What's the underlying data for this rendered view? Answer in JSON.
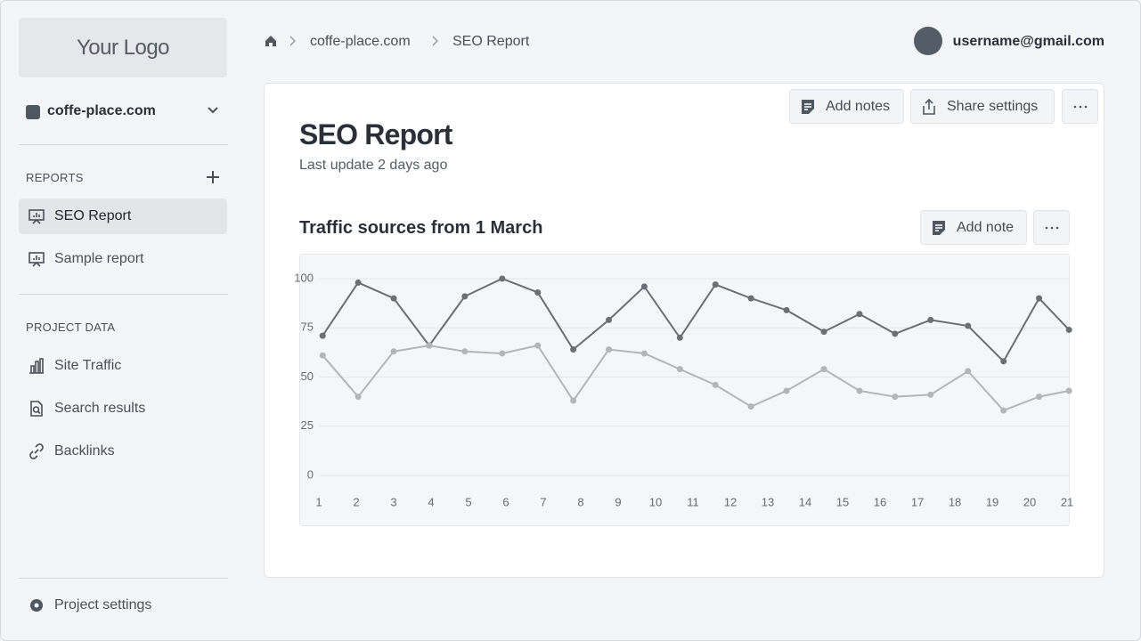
{
  "sidebar": {
    "logo": "Your Logo",
    "project": "coffe-place.com",
    "reports": {
      "label": "REPORTS",
      "items": [
        "SEO Report",
        "Sample report"
      ]
    },
    "project_data": {
      "label": "PROJECT DATA",
      "items": [
        "Site Traffic",
        "Search results",
        "Backlinks"
      ]
    },
    "footer": "Project settings"
  },
  "header": {
    "breadcrumb": [
      "coffe-place.com",
      "SEO Report"
    ],
    "user": "username@gmail.com"
  },
  "report": {
    "title": "SEO Report",
    "subtitle": "Last update 2 days ago",
    "buttons": [
      "Add notes",
      "Share settings"
    ],
    "chart_button": "Add note"
  },
  "chart_data": {
    "type": "line",
    "title": "Traffic sources from 1 March",
    "x": [
      1.1,
      2.05,
      3.0,
      3.95,
      4.9,
      5.9,
      6.85,
      7.8,
      8.75,
      9.7,
      10.65,
      11.6,
      12.55,
      13.5,
      14.5,
      15.45,
      16.4,
      17.35,
      18.35,
      19.3,
      20.25,
      21.05
    ],
    "series": [
      {
        "color": "#6b6e72",
        "values": [
          71,
          98,
          90,
          66,
          91,
          100,
          93,
          64,
          79,
          96,
          70,
          97,
          90,
          84,
          73,
          82,
          72,
          79,
          76,
          58,
          90,
          74
        ]
      },
      {
        "color": "#b3b5b8",
        "values": [
          61,
          40,
          63,
          66,
          63,
          62,
          66,
          38,
          64,
          62,
          54,
          46,
          35,
          43,
          54,
          43,
          40,
          41,
          53,
          33,
          40,
          43
        ]
      }
    ],
    "xlim": [
      0.5,
      21.07
    ],
    "xticks": [
      1,
      2,
      3,
      4,
      5,
      6,
      7,
      8,
      9,
      10,
      11,
      12,
      13,
      14,
      15,
      16,
      17,
      18,
      19,
      20,
      21
    ],
    "ylim": [
      0,
      100
    ],
    "yticks": [
      0,
      25,
      50,
      75,
      100
    ],
    "grid": true
  }
}
